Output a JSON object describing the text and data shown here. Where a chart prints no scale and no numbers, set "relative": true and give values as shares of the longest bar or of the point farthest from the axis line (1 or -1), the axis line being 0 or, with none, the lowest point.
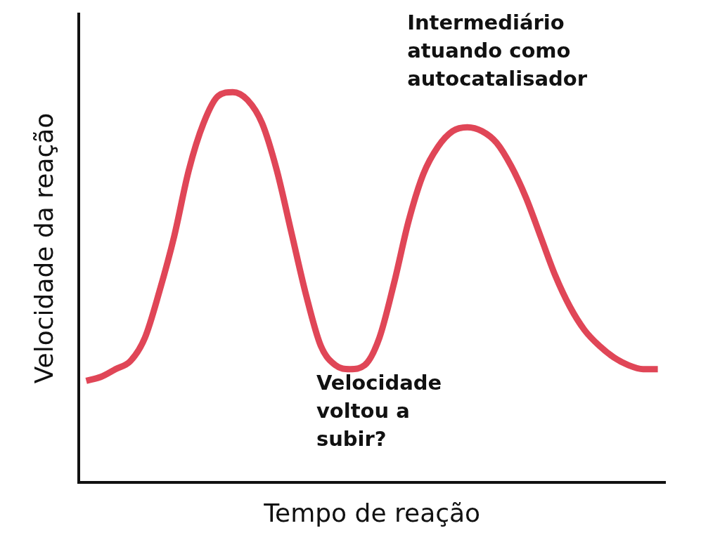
{
  "chart_data": {
    "type": "line",
    "relative": true,
    "xlabel": "Tempo de reação",
    "ylabel": "Velocidade da reação",
    "categories": [
      null,
      null,
      null,
      null,
      null,
      null,
      null,
      null,
      null,
      null,
      null,
      null,
      null,
      null,
      null,
      null,
      null,
      null,
      null,
      null,
      null,
      null,
      null,
      null,
      null,
      null,
      null,
      null,
      null,
      null,
      null,
      null,
      null,
      null,
      null,
      null,
      null,
      null,
      null,
      null
    ],
    "series": [
      {
        "color": "#e04657",
        "values": [
          0.26,
          0.27,
          0.29,
          0.31,
          0.37,
          0.49,
          0.63,
          0.8,
          0.92,
          0.99,
          1,
          0.98,
          0.92,
          0.8,
          0.64,
          0.48,
          0.35,
          0.3,
          0.29,
          0.3,
          0.37,
          0.51,
          0.67,
          0.79,
          0.86,
          0.9,
          0.91,
          0.9,
          0.87,
          0.81,
          0.73,
          0.63,
          0.53,
          0.45,
          0.39,
          0.35,
          0.32,
          0.3,
          0.29,
          0.29
        ]
      }
    ],
    "annotations": [
      "Intermediário atuando como autocatalisador",
      "Velocidade voltou a subir?"
    ],
    "grid": false,
    "legend": false,
    "marker": "none",
    "line_style": "solid"
  }
}
